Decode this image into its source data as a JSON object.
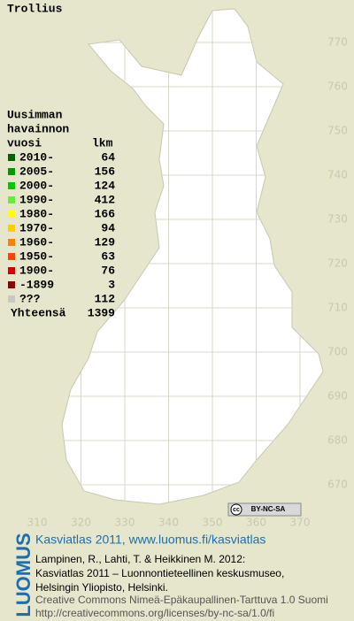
{
  "map": {
    "title": "Trollius",
    "y_ticks": [
      770,
      760,
      750,
      740,
      730,
      720,
      710,
      700,
      690,
      680,
      670
    ],
    "x_ticks": [
      310,
      320,
      330,
      340,
      350,
      360,
      370
    ],
    "land_color": "#ffffff",
    "grid_color": "#d8d8c8"
  },
  "legend": {
    "header": [
      "Uusimman",
      "havainnon",
      "vuosi"
    ],
    "count_header": "lkm",
    "items": [
      {
        "label": "2010-",
        "count": 64,
        "color": "#006400"
      },
      {
        "label": "2005-",
        "count": 156,
        "color": "#009a00"
      },
      {
        "label": "2000-",
        "count": 124,
        "color": "#00c800"
      },
      {
        "label": "1990-",
        "count": 412,
        "color": "#66f033"
      },
      {
        "label": "1980-",
        "count": 166,
        "color": "#ffff00"
      },
      {
        "label": "1970-",
        "count": 94,
        "color": "#ffcc00"
      },
      {
        "label": "1960-",
        "count": 129,
        "color": "#ff8000"
      },
      {
        "label": "1950-",
        "count": 63,
        "color": "#ff4400"
      },
      {
        "label": "1900-",
        "count": 76,
        "color": "#d00000"
      },
      {
        "label": "-1899",
        "count": 3,
        "color": "#900000"
      },
      {
        "label": "???",
        "count": 112,
        "color": "#c8c8c8"
      }
    ],
    "total": {
      "label": "Yhteensä",
      "count": 1399
    }
  },
  "badge": {
    "icon": "cc",
    "label": "BY-NC-SA"
  },
  "footer": {
    "brand": "LUOMUS",
    "heading": "Kasviatlas 2011, www.luomus.fi/kasviatlas",
    "citation": [
      "Lampinen, R., Lahti, T. & Heikkinen M. 2012:",
      "Kasviatlas 2011 – Luonnontieteellinen keskusmuseo,",
      "Helsingin Yliopisto, Helsinki."
    ],
    "license": [
      "Creative Commons Nimeä-Epäkaupallinen-Tarttuva 1.0 Suomi",
      "http://creativecommons.org/licenses/by-nc-sa/1.0/fi"
    ]
  }
}
